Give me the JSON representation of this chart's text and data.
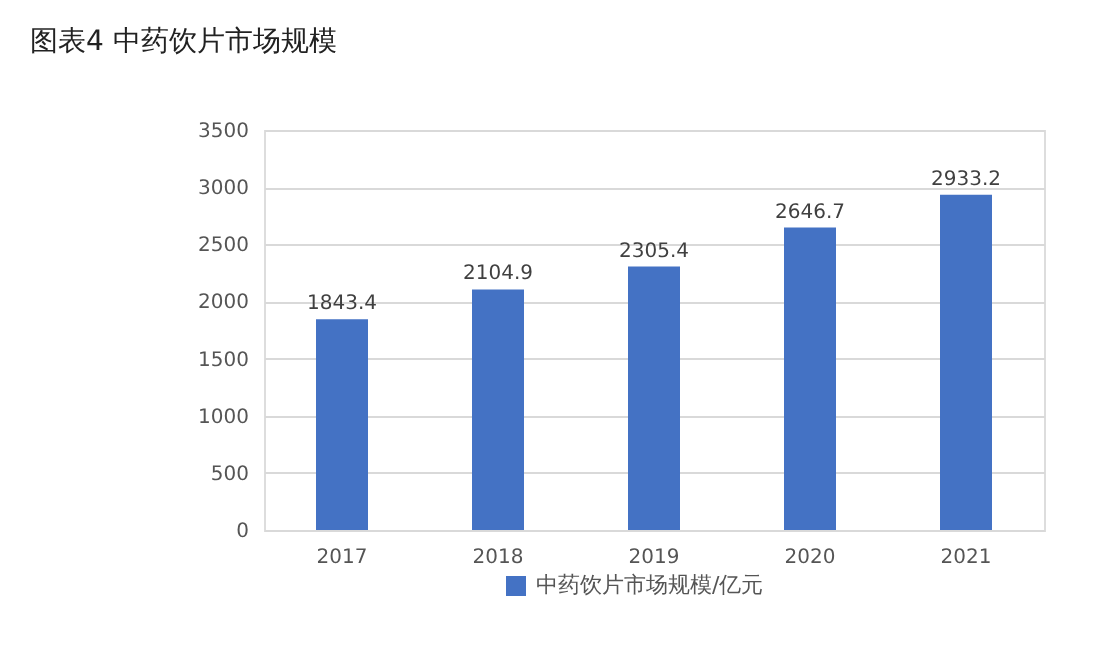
{
  "chart_data": {
    "type": "bar",
    "title": "图表4  中药饮片市场规模",
    "categories": [
      "2017",
      "2018",
      "2019",
      "2020",
      "2021"
    ],
    "series": [
      {
        "name": "中药饮片市场规模/亿元",
        "color": "#4472c4",
        "values": [
          1843.4,
          2104.9,
          2305.4,
          2646.7,
          2933.2
        ]
      }
    ],
    "ylim": [
      0,
      3500
    ],
    "yticks": [
      0,
      500,
      1000,
      1500,
      2000,
      2500,
      3000,
      3500
    ],
    "grid": "y",
    "legend": "bottom",
    "data_labels": true
  }
}
